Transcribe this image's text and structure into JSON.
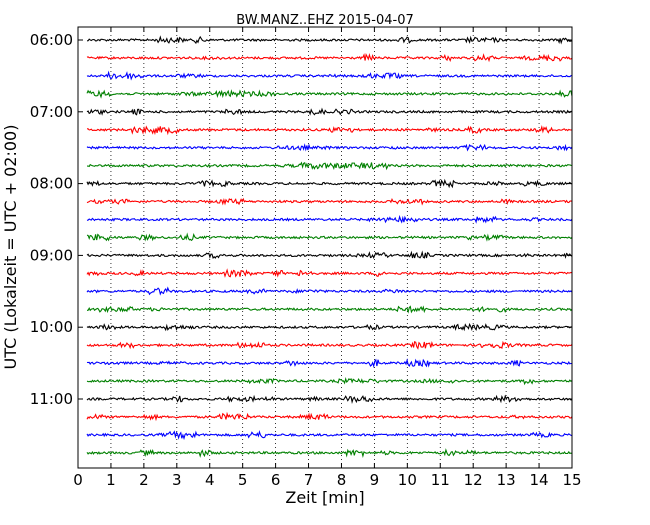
{
  "chart_data": {
    "type": "line",
    "subtype": "dayplot-seismogram",
    "title": "BW.MANZ..EHZ 2015-04-07",
    "xlabel": "Zeit  [min]",
    "ylabel": "UTC (Lokalzeit = UTC + 02:00)",
    "xlim": [
      0,
      15
    ],
    "x_ticks": [
      0,
      1,
      2,
      3,
      4,
      5,
      6,
      7,
      8,
      9,
      10,
      11,
      12,
      13,
      14,
      15
    ],
    "x_tick_labels": [
      "0",
      "1",
      "2",
      "3",
      "4",
      "5",
      "6",
      "7",
      "8",
      "9",
      "10",
      "11",
      "12",
      "13",
      "14",
      "15"
    ],
    "y_tick_labels": [
      "06:00",
      "07:00",
      "08:00",
      "09:00",
      "10:00",
      "11:00"
    ],
    "rows_per_hour": 4,
    "minutes_per_row": 15,
    "grid": "vertical dotted",
    "colors": [
      "#000000",
      "#ff0000",
      "#0000ff",
      "#008000"
    ],
    "traces": [
      {
        "start": "06:00",
        "color": "#000000"
      },
      {
        "start": "06:15",
        "color": "#ff0000"
      },
      {
        "start": "06:30",
        "color": "#0000ff"
      },
      {
        "start": "06:45",
        "color": "#008000"
      },
      {
        "start": "07:00",
        "color": "#000000"
      },
      {
        "start": "07:15",
        "color": "#ff0000"
      },
      {
        "start": "07:30",
        "color": "#0000ff"
      },
      {
        "start": "07:45",
        "color": "#008000"
      },
      {
        "start": "08:00",
        "color": "#000000"
      },
      {
        "start": "08:15",
        "color": "#ff0000"
      },
      {
        "start": "08:30",
        "color": "#0000ff"
      },
      {
        "start": "08:45",
        "color": "#008000"
      },
      {
        "start": "09:00",
        "color": "#000000"
      },
      {
        "start": "09:15",
        "color": "#ff0000"
      },
      {
        "start": "09:30",
        "color": "#0000ff"
      },
      {
        "start": "09:45",
        "color": "#008000"
      },
      {
        "start": "10:00",
        "color": "#000000"
      },
      {
        "start": "10:15",
        "color": "#ff0000"
      },
      {
        "start": "10:30",
        "color": "#0000ff"
      },
      {
        "start": "10:45",
        "color": "#008000"
      },
      {
        "start": "11:00",
        "color": "#000000"
      },
      {
        "start": "11:15",
        "color": "#ff0000"
      },
      {
        "start": "11:30",
        "color": "#0000ff"
      },
      {
        "start": "11:45",
        "color": "#008000"
      }
    ]
  }
}
